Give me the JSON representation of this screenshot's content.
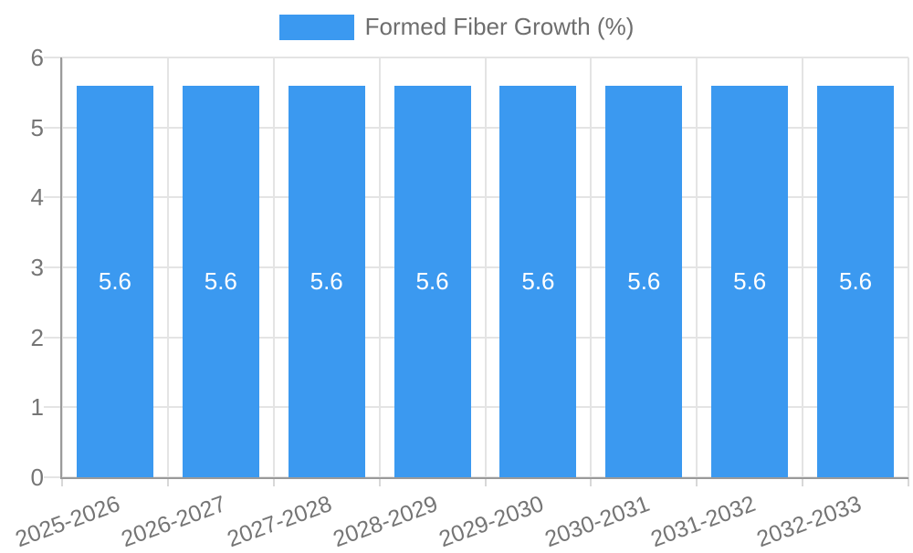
{
  "legend": {
    "position": "top"
  },
  "colors": {
    "bar": "#3B99F0",
    "axis_line": "#9a9a9a",
    "gridline": "#e4e4e4",
    "tick_text": "#757575",
    "legend_text": "#6e6e6e",
    "value_text": "#ffffff",
    "background": "#ffffff"
  },
  "chart_data": {
    "type": "bar",
    "title": "Formed Fiber Growth (%)",
    "categories": [
      "2025-2026",
      "2026-2027",
      "2027-2028",
      "2028-2029",
      "2029-2030",
      "2030-2031",
      "2031-2032",
      "2032-2033"
    ],
    "values": [
      5.6,
      5.6,
      5.6,
      5.6,
      5.6,
      5.6,
      5.6,
      5.6
    ],
    "value_labels": [
      "5.6",
      "5.6",
      "5.6",
      "5.6",
      "5.6",
      "5.6",
      "5.6",
      "5.6"
    ],
    "xlabel": "",
    "ylabel": "",
    "ylim": [
      0,
      6
    ],
    "yticks": [
      0,
      1,
      2,
      3,
      4,
      5,
      6
    ],
    "ytick_labels": [
      "0",
      "1",
      "2",
      "3",
      "4",
      "5",
      "6"
    ],
    "grid": true,
    "legend_position": "top",
    "legend_entries": [
      "Formed Fiber Growth (%)"
    ],
    "x_label_rotation_deg": -20,
    "bar_width_ratio": 0.724
  }
}
